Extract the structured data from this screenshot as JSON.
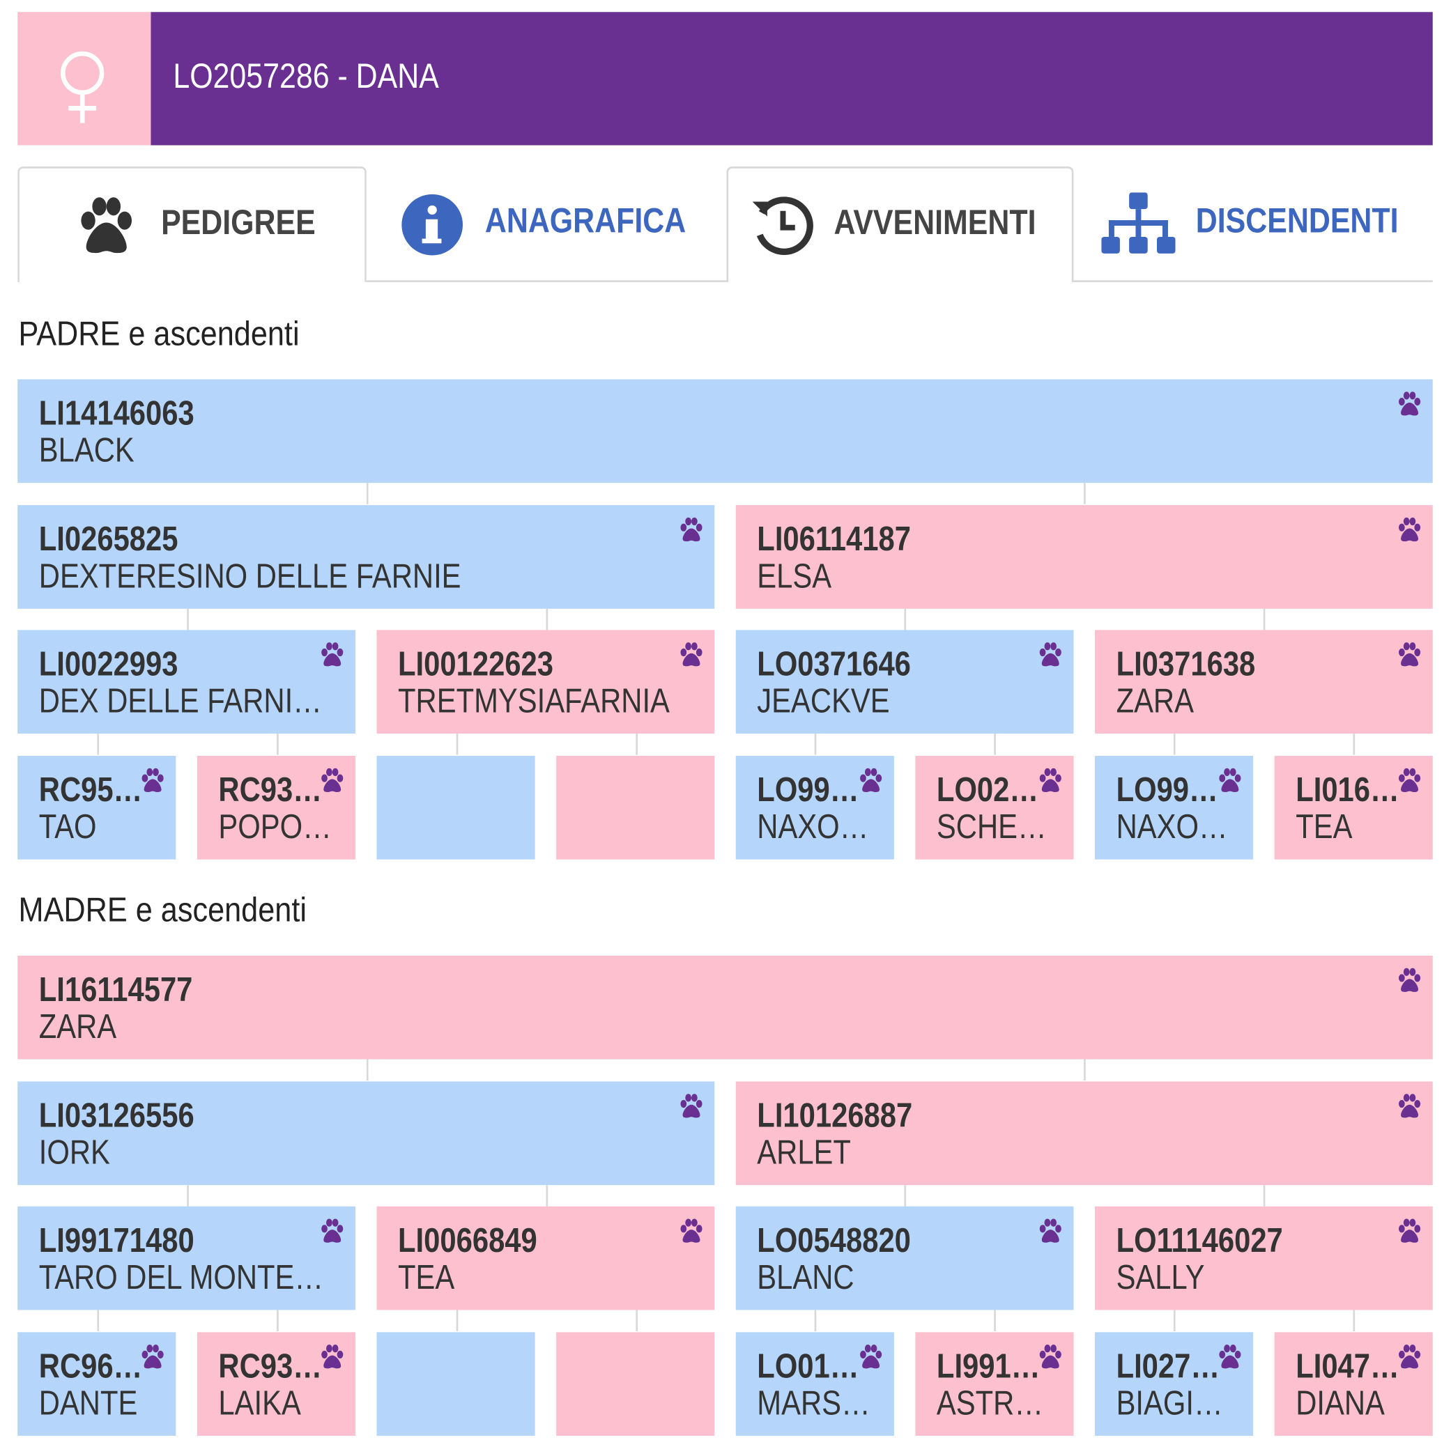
{
  "header": {
    "title": "LO2057286 - DANA"
  },
  "tabs": [
    "PEDIGREE",
    "ANAGRAFICA",
    "AVVENIMENTI",
    "DISCENDENTI"
  ],
  "sections": [
    {
      "title": "PADRE e ascendenti",
      "levels": [
        [
          {
            "code": "LI14146063",
            "name": "BLACK"
          }
        ],
        [
          {
            "code": "LI0265825",
            "name": "DEXTERESINO DELLE FARNIE"
          },
          {
            "code": "LI06114187",
            "name": "ELSA"
          }
        ],
        [
          {
            "code": "LI0022993",
            "name": "DEX DELLE FARNI…"
          },
          {
            "code": "LI00122623",
            "name": "TRETMYSIAFARNIA"
          },
          {
            "code": "LO0371646",
            "name": "JEACKVE"
          },
          {
            "code": "LI0371638",
            "name": "ZARA"
          }
        ],
        [
          {
            "code": "RC95…",
            "name": "TAO"
          },
          {
            "code": "RC93…",
            "name": "POPO…"
          },
          null,
          null,
          {
            "code": "LO99…",
            "name": "NAXO…"
          },
          {
            "code": "LO02…",
            "name": "SCHE…"
          },
          {
            "code": "LO99…",
            "name": "NAXO…"
          },
          {
            "code": "LI016…",
            "name": "TEA"
          }
        ]
      ]
    },
    {
      "title": "MADRE e ascendenti",
      "levels": [
        [
          {
            "code": "LI16114577",
            "name": "ZARA"
          }
        ],
        [
          {
            "code": "LI03126556",
            "name": "IORK"
          },
          {
            "code": "LI10126887",
            "name": "ARLET"
          }
        ],
        [
          {
            "code": "LI99171480",
            "name": "TARO DEL MONTE…"
          },
          {
            "code": "LI0066849",
            "name": "TEA"
          },
          {
            "code": "LO0548820",
            "name": "BLANC"
          },
          {
            "code": "LO11146027",
            "name": "SALLY"
          }
        ],
        [
          {
            "code": "RC96…",
            "name": "DANTE"
          },
          {
            "code": "RC93…",
            "name": "LAIKA"
          },
          null,
          null,
          {
            "code": "LO01…",
            "name": "MARS…"
          },
          {
            "code": "LI991…",
            "name": "ASTR…"
          },
          {
            "code": "LI027…",
            "name": "BIAGI…"
          },
          {
            "code": "LI047…",
            "name": "DIANA"
          }
        ]
      ]
    }
  ]
}
